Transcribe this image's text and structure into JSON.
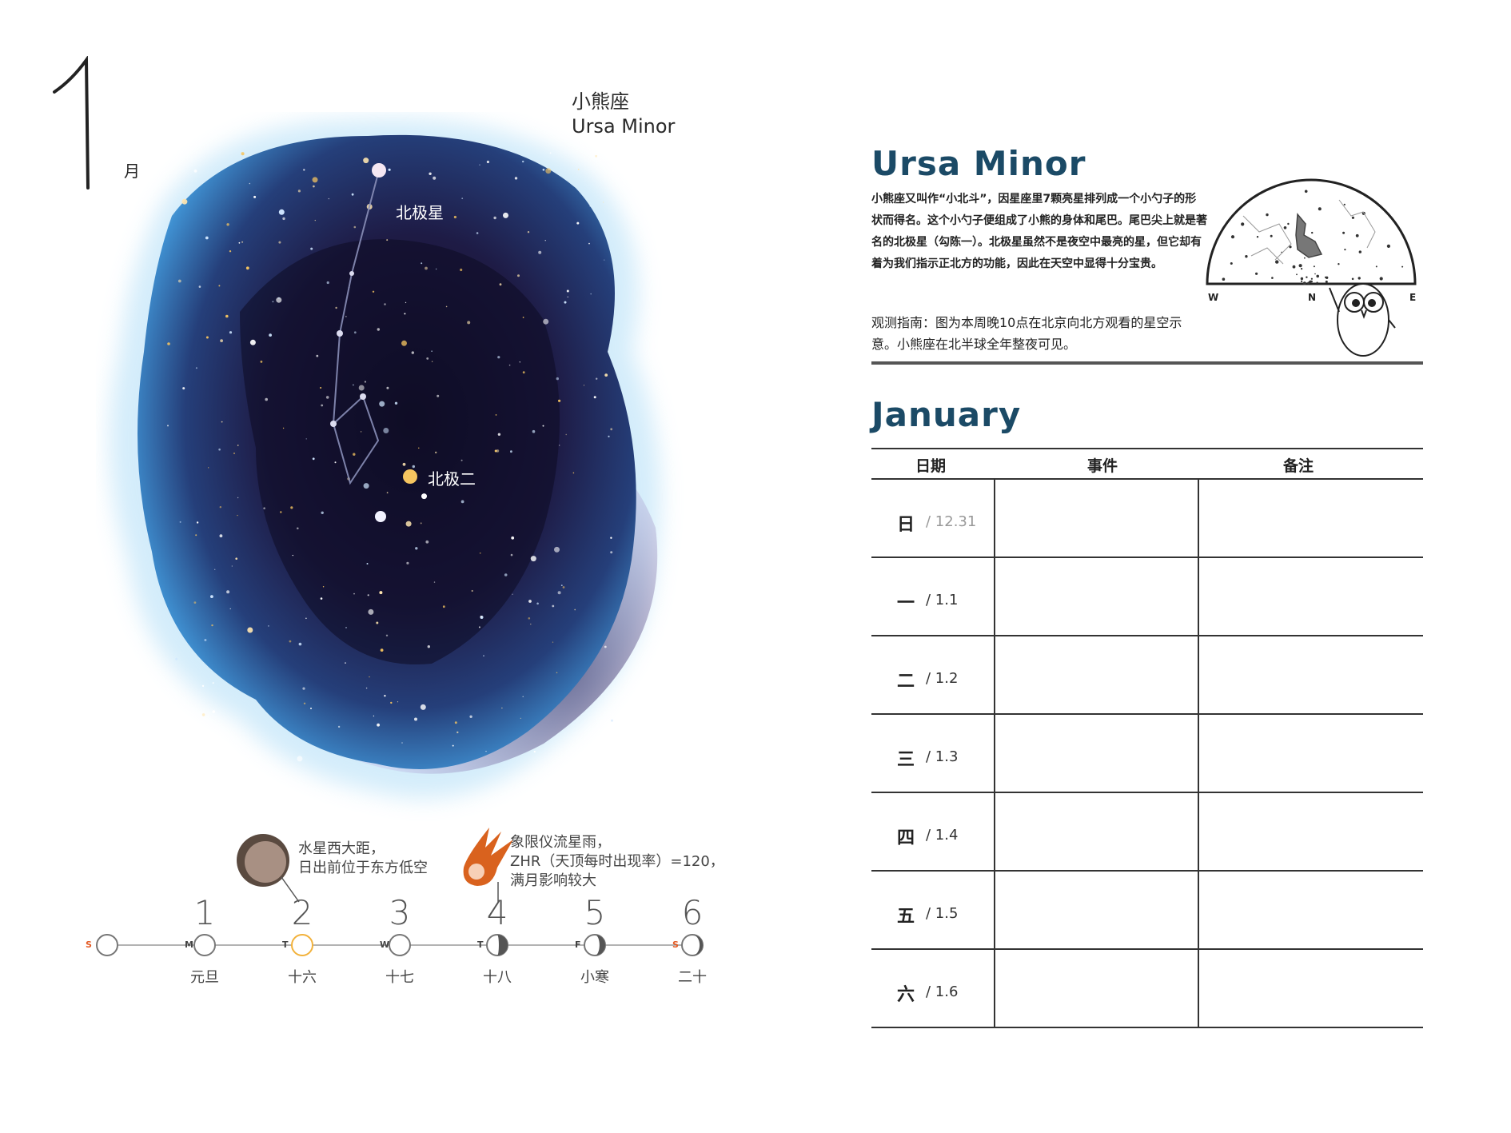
{
  "left": {
    "month_unit": "月",
    "constellation": {
      "name_cn": "小熊座",
      "name_en": "Ursa Minor"
    },
    "star_labels": [
      "北极星",
      "北极二"
    ],
    "events": [
      {
        "icon": "moon-icon",
        "lines": [
          "水星西大距，",
          "日出前位于东方低空"
        ]
      },
      {
        "icon": "meteor-icon",
        "lines": [
          "象限仪流星雨，",
          "ZHR（天顶每时出现率）=120，",
          "满月影响较大"
        ]
      }
    ],
    "timeline": {
      "leading_weekday": "S",
      "days": [
        {
          "num": "1",
          "weekday": "M",
          "label": "元旦",
          "weekend": false
        },
        {
          "num": "2",
          "weekday": "T",
          "label": "十六",
          "weekend": false
        },
        {
          "num": "3",
          "weekday": "W",
          "label": "十七",
          "weekend": false
        },
        {
          "num": "4",
          "weekday": "T",
          "label": "十八",
          "weekend": false
        },
        {
          "num": "5",
          "weekday": "F",
          "label": "小寒",
          "weekend": false
        },
        {
          "num": "6",
          "weekday": "S",
          "label": "二十",
          "weekend": true
        }
      ]
    }
  },
  "right": {
    "title": "Ursa Minor",
    "description": "小熊座又叫作“小北斗”，因星座里7颗亮星排列成一个小勺子的形状而得名。这个小勺子便组成了小熊的身体和尾巴。尾巴尖上就是著名的北极星（勾陈一）。北极星虽然不是夜空中最亮的星，但它却有着为我们指示正北方的功能，因此在天空中显得十分宝贵。",
    "guide": "观测指南：图为本周晚10点在北京向北方观看的星空示意。小熊座在北半球全年整夜可见。",
    "skymap_directions": [
      "W",
      "N",
      "E"
    ],
    "month_title": "January",
    "table": {
      "headers": [
        "日期",
        "事件",
        "备注"
      ],
      "rows": [
        {
          "day": "日",
          "date": "12.31"
        },
        {
          "day": "一",
          "date": "1.1"
        },
        {
          "day": "二",
          "date": "1.2"
        },
        {
          "day": "三",
          "date": "1.3"
        },
        {
          "day": "四",
          "date": "1.4"
        },
        {
          "day": "五",
          "date": "1.5"
        },
        {
          "day": "六",
          "date": "1.6"
        }
      ]
    }
  },
  "colors": {
    "title_blue": "#1b4a66",
    "weekend_red": "#e35a24",
    "today_ring": "#f2b23c"
  }
}
